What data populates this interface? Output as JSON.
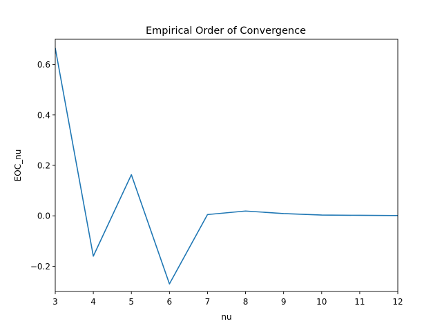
{
  "chart_data": {
    "type": "line",
    "title": "Empirical Order of Convergence",
    "xlabel": "nu",
    "ylabel": "EOC_nu",
    "xlim": [
      3,
      12
    ],
    "ylim": [
      -0.3,
      0.7
    ],
    "xticks": [
      3,
      4,
      5,
      6,
      7,
      8,
      9,
      10,
      11,
      12
    ],
    "yticks": [
      -0.2,
      0.0,
      0.2,
      0.4,
      0.6
    ],
    "ytick_labels": [
      "−0.2",
      "0.0",
      "0.2",
      "0.4",
      "0.6"
    ],
    "grid": false,
    "series": [
      {
        "color": "#1f77b4",
        "x": [
          3,
          4,
          5,
          6,
          7,
          8,
          9,
          10,
          11,
          12
        ],
        "y": [
          0.665,
          -0.16,
          0.163,
          -0.27,
          0.005,
          0.019,
          0.009,
          0.003,
          0.002,
          0.001
        ]
      }
    ]
  }
}
